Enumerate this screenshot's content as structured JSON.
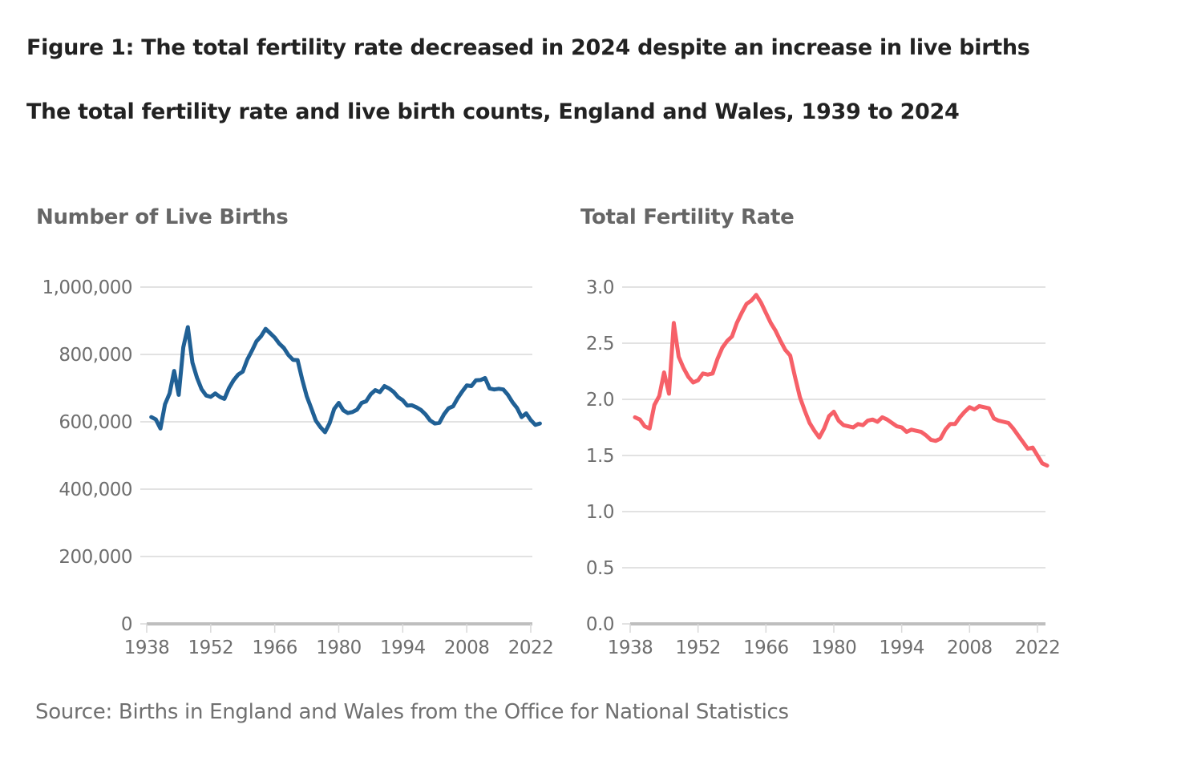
{
  "figure": {
    "title": "Figure 1: The total fertility rate decreased in 2024 despite an increase in live births",
    "subtitle": "The total fertility rate and live birth counts, England and Wales, 1939 to 2024",
    "source": "Source: Births in England and Wales from the Office for National Statistics"
  },
  "chart_data": [
    {
      "type": "line",
      "title": "Number of Live Births",
      "xlabel": "",
      "ylabel": "",
      "color": "#206095",
      "xlim": [
        1938,
        2024
      ],
      "ylim": [
        0,
        1000000
      ],
      "x_ticks": [
        1938,
        1952,
        1966,
        1980,
        1994,
        2008,
        2022
      ],
      "x_tick_labels": [
        "1938",
        "1952",
        "1966",
        "1980",
        "1994",
        "2008",
        "2022"
      ],
      "y_ticks": [
        0,
        200000,
        400000,
        600000,
        800000,
        1000000
      ],
      "y_tick_labels": [
        "0",
        "200,000",
        "400,000",
        "600,000",
        "800,000",
        "1,000,000"
      ],
      "grid": true,
      "legend": "none",
      "series": [
        {
          "name": "Live births",
          "x": [
            1939,
            1940,
            1941,
            1942,
            1943,
            1944,
            1945,
            1946,
            1947,
            1948,
            1949,
            1950,
            1951,
            1952,
            1953,
            1954,
            1955,
            1956,
            1957,
            1958,
            1959,
            1960,
            1961,
            1962,
            1963,
            1964,
            1965,
            1966,
            1967,
            1968,
            1969,
            1970,
            1971,
            1972,
            1973,
            1974,
            1975,
            1976,
            1977,
            1978,
            1979,
            1980,
            1981,
            1982,
            1983,
            1984,
            1985,
            1986,
            1987,
            1988,
            1989,
            1990,
            1991,
            1992,
            1993,
            1994,
            1995,
            1996,
            1997,
            1998,
            1999,
            2000,
            2001,
            2002,
            2003,
            2004,
            2005,
            2006,
            2007,
            2008,
            2009,
            2010,
            2011,
            2012,
            2013,
            2014,
            2015,
            2016,
            2017,
            2018,
            2019,
            2020,
            2021,
            2022,
            2023,
            2024
          ],
          "values": [
            614000,
            607000,
            580000,
            652000,
            684000,
            751000,
            680000,
            821000,
            881000,
            776000,
            731000,
            697000,
            678000,
            674000,
            684000,
            674000,
            668000,
            700000,
            723000,
            740000,
            749000,
            785000,
            811000,
            839000,
            854000,
            876000,
            863000,
            850000,
            832000,
            819000,
            798000,
            784000,
            783000,
            726000,
            676000,
            640000,
            603000,
            584000,
            569000,
            596000,
            638000,
            656000,
            634000,
            626000,
            629000,
            636000,
            656000,
            661000,
            682000,
            694000,
            688000,
            706000,
            699000,
            689000,
            673000,
            664000,
            648000,
            649000,
            643000,
            635000,
            622000,
            604000,
            595000,
            597000,
            622000,
            640000,
            646000,
            670000,
            690000,
            708000,
            706000,
            723000,
            724000,
            730000,
            699000,
            696000,
            698000,
            696000,
            680000,
            658000,
            641000,
            614000,
            625000,
            605000,
            591000,
            595000
          ]
        }
      ]
    },
    {
      "type": "line",
      "title": "Total Fertility Rate",
      "xlabel": "",
      "ylabel": "",
      "color": "#f66068",
      "xlim": [
        1938,
        2024
      ],
      "ylim": [
        0,
        3.0
      ],
      "x_ticks": [
        1938,
        1952,
        1966,
        1980,
        1994,
        2008,
        2022
      ],
      "x_tick_labels": [
        "1938",
        "1952",
        "1966",
        "1980",
        "1994",
        "2008",
        "2022"
      ],
      "y_ticks": [
        0.0,
        0.5,
        1.0,
        1.5,
        2.0,
        2.5,
        3.0
      ],
      "y_tick_labels": [
        "0.0",
        "0.5",
        "1.0",
        "1.5",
        "2.0",
        "2.5",
        "3.0"
      ],
      "grid": true,
      "legend": "none",
      "series": [
        {
          "name": "Total fertility rate",
          "x": [
            1939,
            1940,
            1941,
            1942,
            1943,
            1944,
            1945,
            1946,
            1947,
            1948,
            1949,
            1950,
            1951,
            1952,
            1953,
            1954,
            1955,
            1956,
            1957,
            1958,
            1959,
            1960,
            1961,
            1962,
            1963,
            1964,
            1965,
            1966,
            1967,
            1968,
            1969,
            1970,
            1971,
            1972,
            1973,
            1974,
            1975,
            1976,
            1977,
            1978,
            1979,
            1980,
            1981,
            1982,
            1983,
            1984,
            1985,
            1986,
            1987,
            1988,
            1989,
            1990,
            1991,
            1992,
            1993,
            1994,
            1995,
            1996,
            1997,
            1998,
            1999,
            2000,
            2001,
            2002,
            2003,
            2004,
            2005,
            2006,
            2007,
            2008,
            2009,
            2010,
            2011,
            2012,
            2013,
            2014,
            2015,
            2016,
            2017,
            2018,
            2019,
            2020,
            2021,
            2022,
            2023,
            2024
          ],
          "values": [
            1.84,
            1.82,
            1.76,
            1.74,
            1.95,
            2.03,
            2.24,
            2.05,
            2.68,
            2.38,
            2.28,
            2.2,
            2.15,
            2.17,
            2.23,
            2.22,
            2.23,
            2.36,
            2.46,
            2.52,
            2.56,
            2.68,
            2.77,
            2.85,
            2.88,
            2.93,
            2.86,
            2.77,
            2.68,
            2.61,
            2.52,
            2.44,
            2.39,
            2.2,
            2.02,
            1.9,
            1.79,
            1.72,
            1.66,
            1.74,
            1.85,
            1.89,
            1.81,
            1.77,
            1.76,
            1.75,
            1.78,
            1.77,
            1.81,
            1.82,
            1.8,
            1.84,
            1.82,
            1.79,
            1.76,
            1.75,
            1.71,
            1.73,
            1.72,
            1.71,
            1.68,
            1.64,
            1.63,
            1.65,
            1.73,
            1.78,
            1.78,
            1.84,
            1.89,
            1.93,
            1.91,
            1.94,
            1.93,
            1.92,
            1.83,
            1.81,
            1.8,
            1.79,
            1.74,
            1.68,
            1.62,
            1.56,
            1.57,
            1.5,
            1.43,
            1.41
          ]
        }
      ]
    }
  ]
}
